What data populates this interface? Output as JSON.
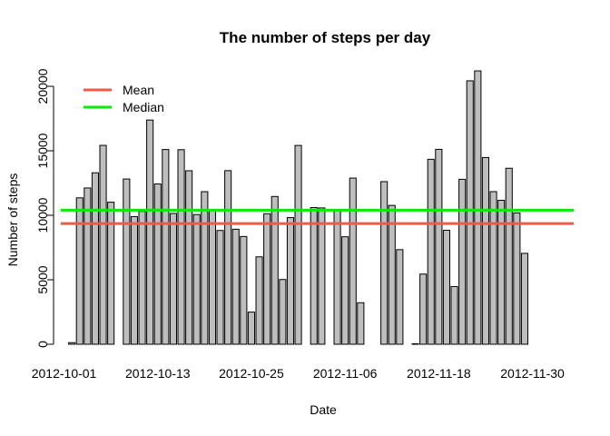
{
  "chart_data": {
    "type": "bar",
    "title": "The number of steps per day",
    "xlabel": "Date",
    "ylabel": "Number of steps",
    "ylim": [
      0,
      20000
    ],
    "yticks": [
      0,
      5000,
      10000,
      15000,
      20000
    ],
    "yticks_labels": [
      "0",
      "5000",
      "10000",
      "15000",
      "20000"
    ],
    "xtick_labels": [
      "2012-10-01",
      "2012-10-13",
      "2012-10-25",
      "2012-11-06",
      "2012-11-18",
      "2012-11-30"
    ],
    "xtick_indices": [
      0,
      12,
      24,
      36,
      48,
      60
    ],
    "bar_color": "#bebebe",
    "categories": [
      "2012-10-01",
      "2012-10-02",
      "2012-10-03",
      "2012-10-04",
      "2012-10-05",
      "2012-10-06",
      "2012-10-07",
      "2012-10-08",
      "2012-10-09",
      "2012-10-10",
      "2012-10-11",
      "2012-10-12",
      "2012-10-13",
      "2012-10-14",
      "2012-10-15",
      "2012-10-16",
      "2012-10-17",
      "2012-10-18",
      "2012-10-19",
      "2012-10-20",
      "2012-10-21",
      "2012-10-22",
      "2012-10-23",
      "2012-10-24",
      "2012-10-25",
      "2012-10-26",
      "2012-10-27",
      "2012-10-28",
      "2012-10-29",
      "2012-10-30",
      "2012-10-31",
      "2012-11-01",
      "2012-11-02",
      "2012-11-03",
      "2012-11-04",
      "2012-11-05",
      "2012-11-06",
      "2012-11-07",
      "2012-11-08",
      "2012-11-09",
      "2012-11-10",
      "2012-11-11",
      "2012-11-12",
      "2012-11-13",
      "2012-11-14",
      "2012-11-15",
      "2012-11-16",
      "2012-11-17",
      "2012-11-18",
      "2012-11-19",
      "2012-11-20",
      "2012-11-21",
      "2012-11-22",
      "2012-11-23",
      "2012-11-24",
      "2012-11-25",
      "2012-11-26",
      "2012-11-27",
      "2012-11-28",
      "2012-11-29",
      "2012-11-30"
    ],
    "values": [
      0,
      126,
      11352,
      12116,
      13294,
      15420,
      11015,
      0,
      12811,
      9900,
      10304,
      17382,
      12426,
      15098,
      10139,
      15084,
      13452,
      10056,
      11829,
      10395,
      8821,
      13460,
      8918,
      8355,
      2492,
      6778,
      10119,
      11458,
      5018,
      9819,
      15414,
      0,
      10600,
      10571,
      0,
      10439,
      8334,
      12883,
      3219,
      0,
      0,
      12608,
      10765,
      7336,
      0,
      41,
      5441,
      14339,
      15110,
      8841,
      4472,
      12787,
      20427,
      21194,
      14478,
      11834,
      11162,
      13646,
      10183,
      7047,
      0
    ],
    "series": [
      {
        "name": "Mean",
        "value": 9354,
        "color": "#f05a46"
      },
      {
        "name": "Median",
        "value": 10395,
        "color": "#00ee00"
      }
    ],
    "legend": "top-left"
  }
}
